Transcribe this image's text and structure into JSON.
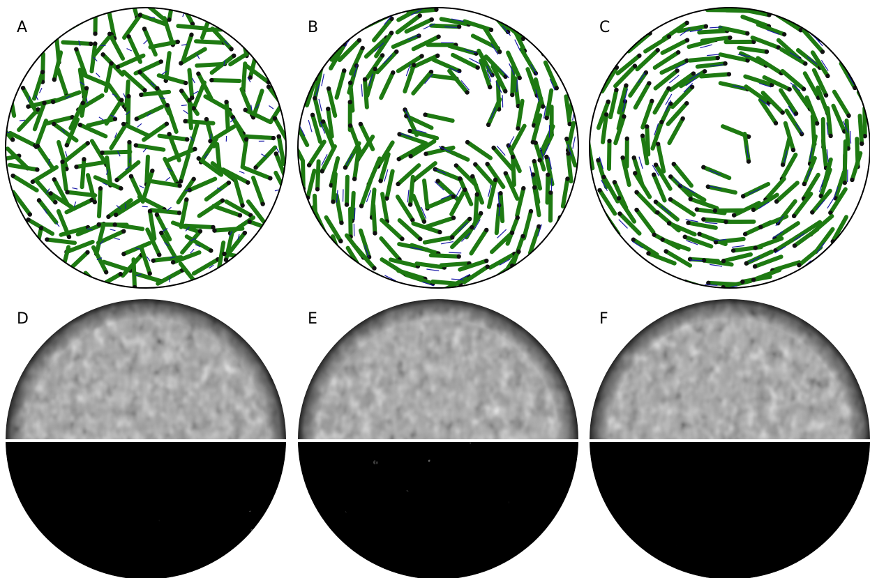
{
  "panels": [
    {
      "label": "A",
      "kind": "simulation",
      "order": "disordered"
    },
    {
      "label": "B",
      "kind": "simulation",
      "order": "double-vortex"
    },
    {
      "label": "C",
      "kind": "simulation",
      "order": "single-vortex"
    },
    {
      "label": "D",
      "kind": "micrograph",
      "order": "disordered"
    },
    {
      "label": "E",
      "kind": "micrograph",
      "order": "double-vortex"
    },
    {
      "label": "F",
      "kind": "micrograph",
      "order": "single-vortex"
    }
  ],
  "colors": {
    "rod": "#1e7a12",
    "rod_head": "#111111",
    "flow_arrow": "#1a1aa8",
    "circle_border": "#000000",
    "micrograph_base": "#9a9a9a",
    "binary_background": "#000000",
    "binary_streak": "#ffffff"
  },
  "icons": {
    "rod": "green-rod-with-black-dot-icon",
    "arrow": "blue-flow-arrow-icon"
  }
}
